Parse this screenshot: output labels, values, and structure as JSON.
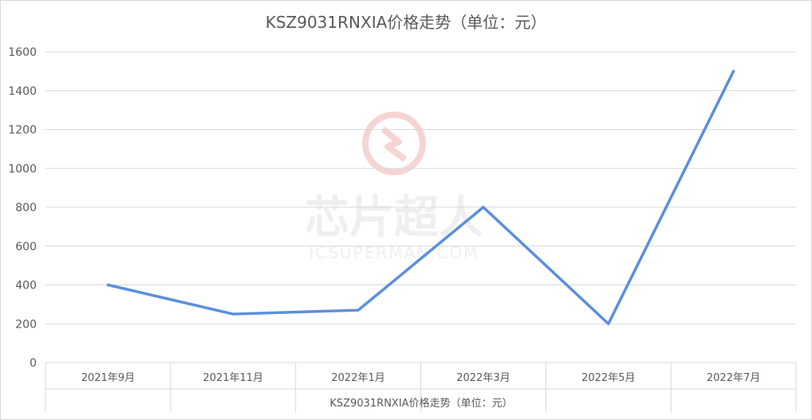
{
  "title": "KSZ9031RNXIA价格走势（单位：元）",
  "watermark": {
    "text": "芯片超人",
    "subtext": "ICSUPERMAN.COM"
  },
  "chart_data": {
    "type": "line",
    "title": "KSZ9031RNXIA价格走势（单位：元）",
    "xlabel": "KSZ9031RNXIA价格走势（单位：元）",
    "ylabel": "",
    "categories": [
      "2021年9月",
      "2021年11月",
      "2022年1月",
      "2022年3月",
      "2022年5月",
      "2022年7月"
    ],
    "series": [
      {
        "values": [
          400,
          250,
          270,
          800,
          200,
          1500
        ]
      }
    ],
    "ylim": [
      0,
      1600
    ],
    "yticks": [
      0,
      200,
      400,
      600,
      800,
      1000,
      1200,
      1400,
      1600
    ],
    "grid": true,
    "legend": "none",
    "line_color": "#5b8fdc"
  }
}
